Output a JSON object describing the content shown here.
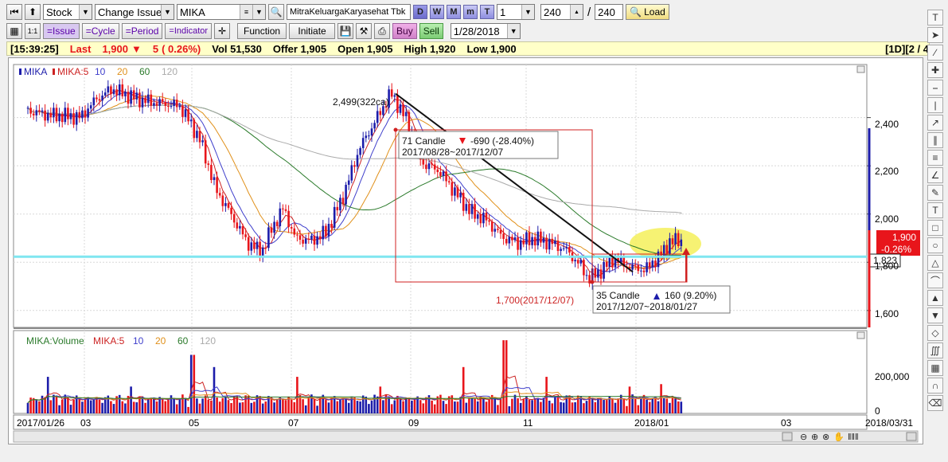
{
  "toolbar1": {
    "type_value": "Stock",
    "change_label": "Change Issue",
    "symbol_value": "MIKA",
    "company_name": "MitraKeluargaKaryasehat Tbk",
    "period_buttons": [
      "D",
      "W",
      "M",
      "m",
      "T"
    ],
    "period_count": "1",
    "count_value": "240",
    "count_total": "240",
    "separator": "/",
    "load_label": "Load"
  },
  "toolbar2": {
    "issue_label": "=Issue",
    "cycle_label": "=Cycle",
    "period_label": "=Period",
    "indicator_label": "=Indicator",
    "function_label": "Function",
    "initiate_label": "Initiate",
    "buy_label": "Buy",
    "sell_label": "Sell",
    "date_value": "1/28/2018"
  },
  "status": {
    "time": "[15:39:25]",
    "last_label": "Last",
    "last_value": "1,900",
    "change": "5",
    "change_pct": "( 0.26%)",
    "vol": "Vol 51,530",
    "offer": "Offer 1,905",
    "open": "Open 1,905",
    "high": "High 1,920",
    "low": "Low 1,900",
    "page": "[1D][2 / 4"
  },
  "colors": {
    "up": "#1c1caa",
    "down": "#e8151b",
    "ma5": "#cc2222",
    "ma10": "#4040cc",
    "ma20": "#e0901a",
    "ma60": "#2a7a2a",
    "ma120": "#aaaaaa",
    "hline": "#7fe6f0",
    "highlight": "#f4f05a"
  },
  "chart_data": [
    {
      "type": "line",
      "chart": "candlestick",
      "legend": [
        "MIKA",
        "MIKA:5",
        "10",
        "20",
        "60",
        "120"
      ],
      "x_ticks": [
        "2017/01/26",
        "03",
        "05",
        "07",
        "09",
        "11",
        "2018/01",
        "03",
        "2018/03/31"
      ],
      "y_ticks": [
        "2,400",
        "2,200",
        "2,000",
        "1,800",
        "1,600"
      ],
      "ylim": [
        1530,
        2620
      ],
      "series": [
        {
          "name": "MIKA",
          "x": [
            "2017-01",
            "2017-02",
            "2017-03",
            "2017-04",
            "2017-05",
            "2017-06",
            "2017-07",
            "2017-08",
            "2017-09",
            "2017-10",
            "2017-11",
            "2017-12",
            "2018-01"
          ],
          "values": [
            2440,
            2420,
            2520,
            2480,
            2100,
            1860,
            1950,
            2420,
            2050,
            1930,
            1860,
            1750,
            1900
          ]
        }
      ],
      "annotations": {
        "peak": "2,499(322ca)",
        "trough": "1,700(2017/12/07)",
        "box1_count": "71 Candle",
        "box1_change": "-690 (-28.40%)",
        "box1_range": "2017/08/28~2017/12/07",
        "box2_count": "35 Candle",
        "box2_change": "160 (9.20%)",
        "box2_range": "2017/12/07~2018/01/27",
        "last_price": "1,900",
        "last_pct": "-0.26%",
        "hline_value": "1,823"
      }
    },
    {
      "type": "bar",
      "legend": [
        "MIKA:Volume",
        "MIKA:5",
        "10",
        "20",
        "60",
        "120"
      ],
      "y_ticks": [
        "200,000",
        "0"
      ],
      "ylim": [
        0,
        320000
      ]
    }
  ]
}
